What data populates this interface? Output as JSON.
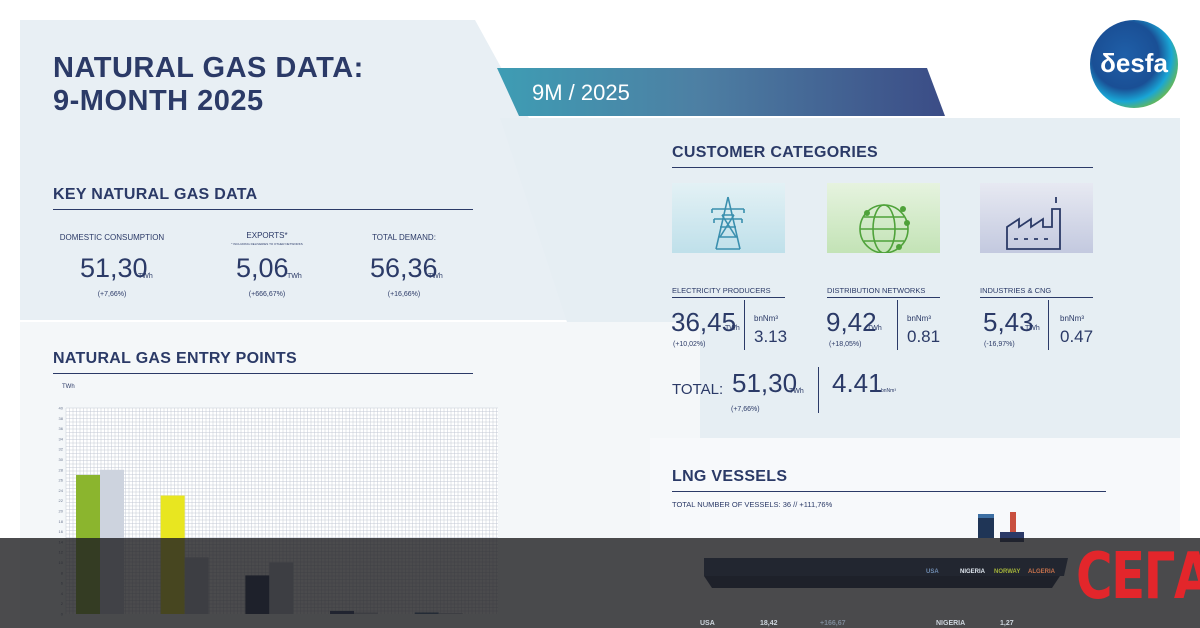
{
  "header": {
    "title_line1": "NATURAL GAS DATA:",
    "title_line2": "9-MONTH 2025",
    "period": "9M / 2025",
    "logo_text": "δesfa"
  },
  "key_data": {
    "title": "KEY NATURAL GAS DATA",
    "items": [
      {
        "label": "DOMESTIC CONSUMPTION",
        "sub": "",
        "value": "51,30",
        "unit": "TWh",
        "change": "(+7,66%)"
      },
      {
        "label": "EXPORTS*",
        "sub": "* INCLUDING DELIVERIES TO OTHER NETWORKS",
        "value": "5,06",
        "unit": "TWh",
        "change": "(+666,67%)"
      },
      {
        "label": "TOTAL DEMAND:",
        "sub": "",
        "value": "56,36",
        "unit": "TWh",
        "change": "(+16,66%)"
      }
    ]
  },
  "entry_points": {
    "title": "NATURAL GAS ENTRY POINTS"
  },
  "chart_data": {
    "type": "bar",
    "title": "NATURAL GAS ENTRY POINTS",
    "ylabel": "TWh",
    "ylim": [
      0,
      40
    ],
    "yticks": [
      0,
      2,
      4,
      6,
      8,
      10,
      12,
      14,
      16,
      18,
      20,
      22,
      24,
      26,
      28,
      30,
      32,
      34,
      36,
      38,
      40
    ],
    "categories": [
      "",
      "",
      "",
      "",
      ""
    ],
    "series": [
      {
        "values": [
          27,
          23,
          7.5,
          0.6,
          0.3
        ],
        "colors": [
          "#8bb52e",
          "#e8e620",
          "#1f2d55",
          "#2e3f70",
          "#3e5f8a"
        ]
      },
      {
        "values": [
          28,
          11,
          10,
          0.3,
          0.2
        ],
        "colors": [
          "#cdd3de",
          "#b7bfcc",
          "#b7bfcc",
          "#b7bfcc",
          "#b7bfcc"
        ]
      }
    ],
    "grid": true
  },
  "customers": {
    "title": "CUSTOMER CATEGORIES",
    "items": [
      {
        "name": "ELECTRICITY PRODUCERS",
        "icon": "power-tower-icon",
        "twh": "36,45",
        "twh_unit": "TWh",
        "change": "(+10,02%)",
        "bcm_unit": "bnNm³",
        "bcm": "3.13",
        "tile_color": "#cfe6ee"
      },
      {
        "name": "DISTRIBUTION NETWORKS",
        "icon": "globe-icon",
        "twh": "9,42",
        "twh_unit": "TWh",
        "change": "(+18,05%)",
        "bcm_unit": "bnNm³",
        "bcm": "0.81",
        "tile_color": "#d6ecd0"
      },
      {
        "name": "INDUSTRIES & CNG",
        "icon": "factory-icon",
        "twh": "5,43",
        "twh_unit": "TWh",
        "change": "(-16,97%)",
        "bcm_unit": "bnNm³",
        "bcm": "0.47",
        "tile_color": "#d4d8e8"
      }
    ],
    "total_label": "TOTAL:",
    "total_twh": "51,30",
    "total_twh_unit": "TWh",
    "total_change": "(+7,66%)",
    "total_bcm": "4.41",
    "total_bcm_unit": "bnNm³"
  },
  "lng": {
    "title": "LNG VESSELS",
    "summary": "TOTAL NUMBER OF VESSELS: 36   //   +111,76%",
    "legend": [
      {
        "label": "USA",
        "color": "#6f8bb0"
      },
      {
        "label": "NIGERIA",
        "color": "#dfe6ee"
      },
      {
        "label": "NORWAY",
        "color": "#a3b33a"
      },
      {
        "label": "ALGERIA",
        "color": "#c6714b"
      }
    ],
    "rows": [
      {
        "country": "USA",
        "value": "18,42",
        "change": "+166,67"
      },
      {
        "country": "NIGERIA",
        "value": "1,27",
        "change": ""
      }
    ]
  },
  "watermark": {
    "text": "СЕГА",
    "color": "#e3262b"
  }
}
